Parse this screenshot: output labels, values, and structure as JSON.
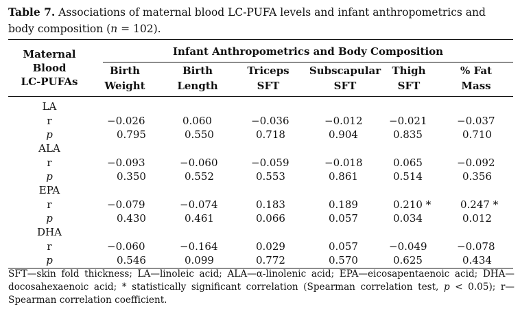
{
  "caption": {
    "label": "Table 7.",
    "text_a": "Associations of maternal blood LC-PUFA levels and infant anthropometrics and body composition (",
    "n_symbol": "n",
    "text_b": " = 102)."
  },
  "header": {
    "rowhead_l1": "Maternal",
    "rowhead_l2": "Blood",
    "rowhead_l3": "LC-PUFAs",
    "group": "Infant Anthropometrics and Body Composition",
    "columns": [
      {
        "l1": "Birth",
        "l2": "Weight"
      },
      {
        "l1": "Birth",
        "l2": "Length"
      },
      {
        "l1": "Triceps",
        "l2": "SFT"
      },
      {
        "l1": "Subscapular",
        "l2": "SFT"
      },
      {
        "l1": "Thigh",
        "l2": "SFT"
      },
      {
        "l1": "% Fat",
        "l2": "Mass"
      }
    ]
  },
  "groups": [
    {
      "name": "LA",
      "r_label": "r",
      "p_label": "p",
      "r": [
        "−0.026",
        "0.060",
        "−0.036",
        "−0.012",
        "−0.021",
        "−0.037"
      ],
      "p": [
        "0.795",
        "0.550",
        "0.718",
        "0.904",
        "0.835",
        "0.710"
      ]
    },
    {
      "name": "ALA",
      "r_label": "r",
      "p_label": "p",
      "r": [
        "−0.093",
        "−0.060",
        "−0.059",
        "−0.018",
        "0.065",
        "−0.092"
      ],
      "p": [
        "0.350",
        "0.552",
        "0.553",
        "0.861",
        "0.514",
        "0.356"
      ]
    },
    {
      "name": "EPA",
      "r_label": "r",
      "p_label": "p",
      "r": [
        "−0.079",
        "−0.074",
        "0.183",
        "0.189",
        "0.210 *",
        "0.247 *"
      ],
      "p": [
        "0.430",
        "0.461",
        "0.066",
        "0.057",
        "0.034",
        "0.012"
      ]
    },
    {
      "name": "DHA",
      "r_label": "r",
      "p_label": "p",
      "r": [
        "−0.060",
        "−0.164",
        "0.029",
        "0.057",
        "−0.049",
        "−0.078"
      ],
      "p": [
        "0.546",
        "0.099",
        "0.772",
        "0.570",
        "0.625",
        "0.434"
      ]
    }
  ],
  "footnote": {
    "a": "SFT—skin fold thickness; LA—linoleic acid; ALA—α-linolenic acid; EPA—eicosapentaenoic acid; DHA—docosahexaenoic acid; * statistically significant correlation (Spearman correlation test, ",
    "p_symbol": "p",
    "b": " < 0.05); r—Spearman correlation coefficient."
  }
}
